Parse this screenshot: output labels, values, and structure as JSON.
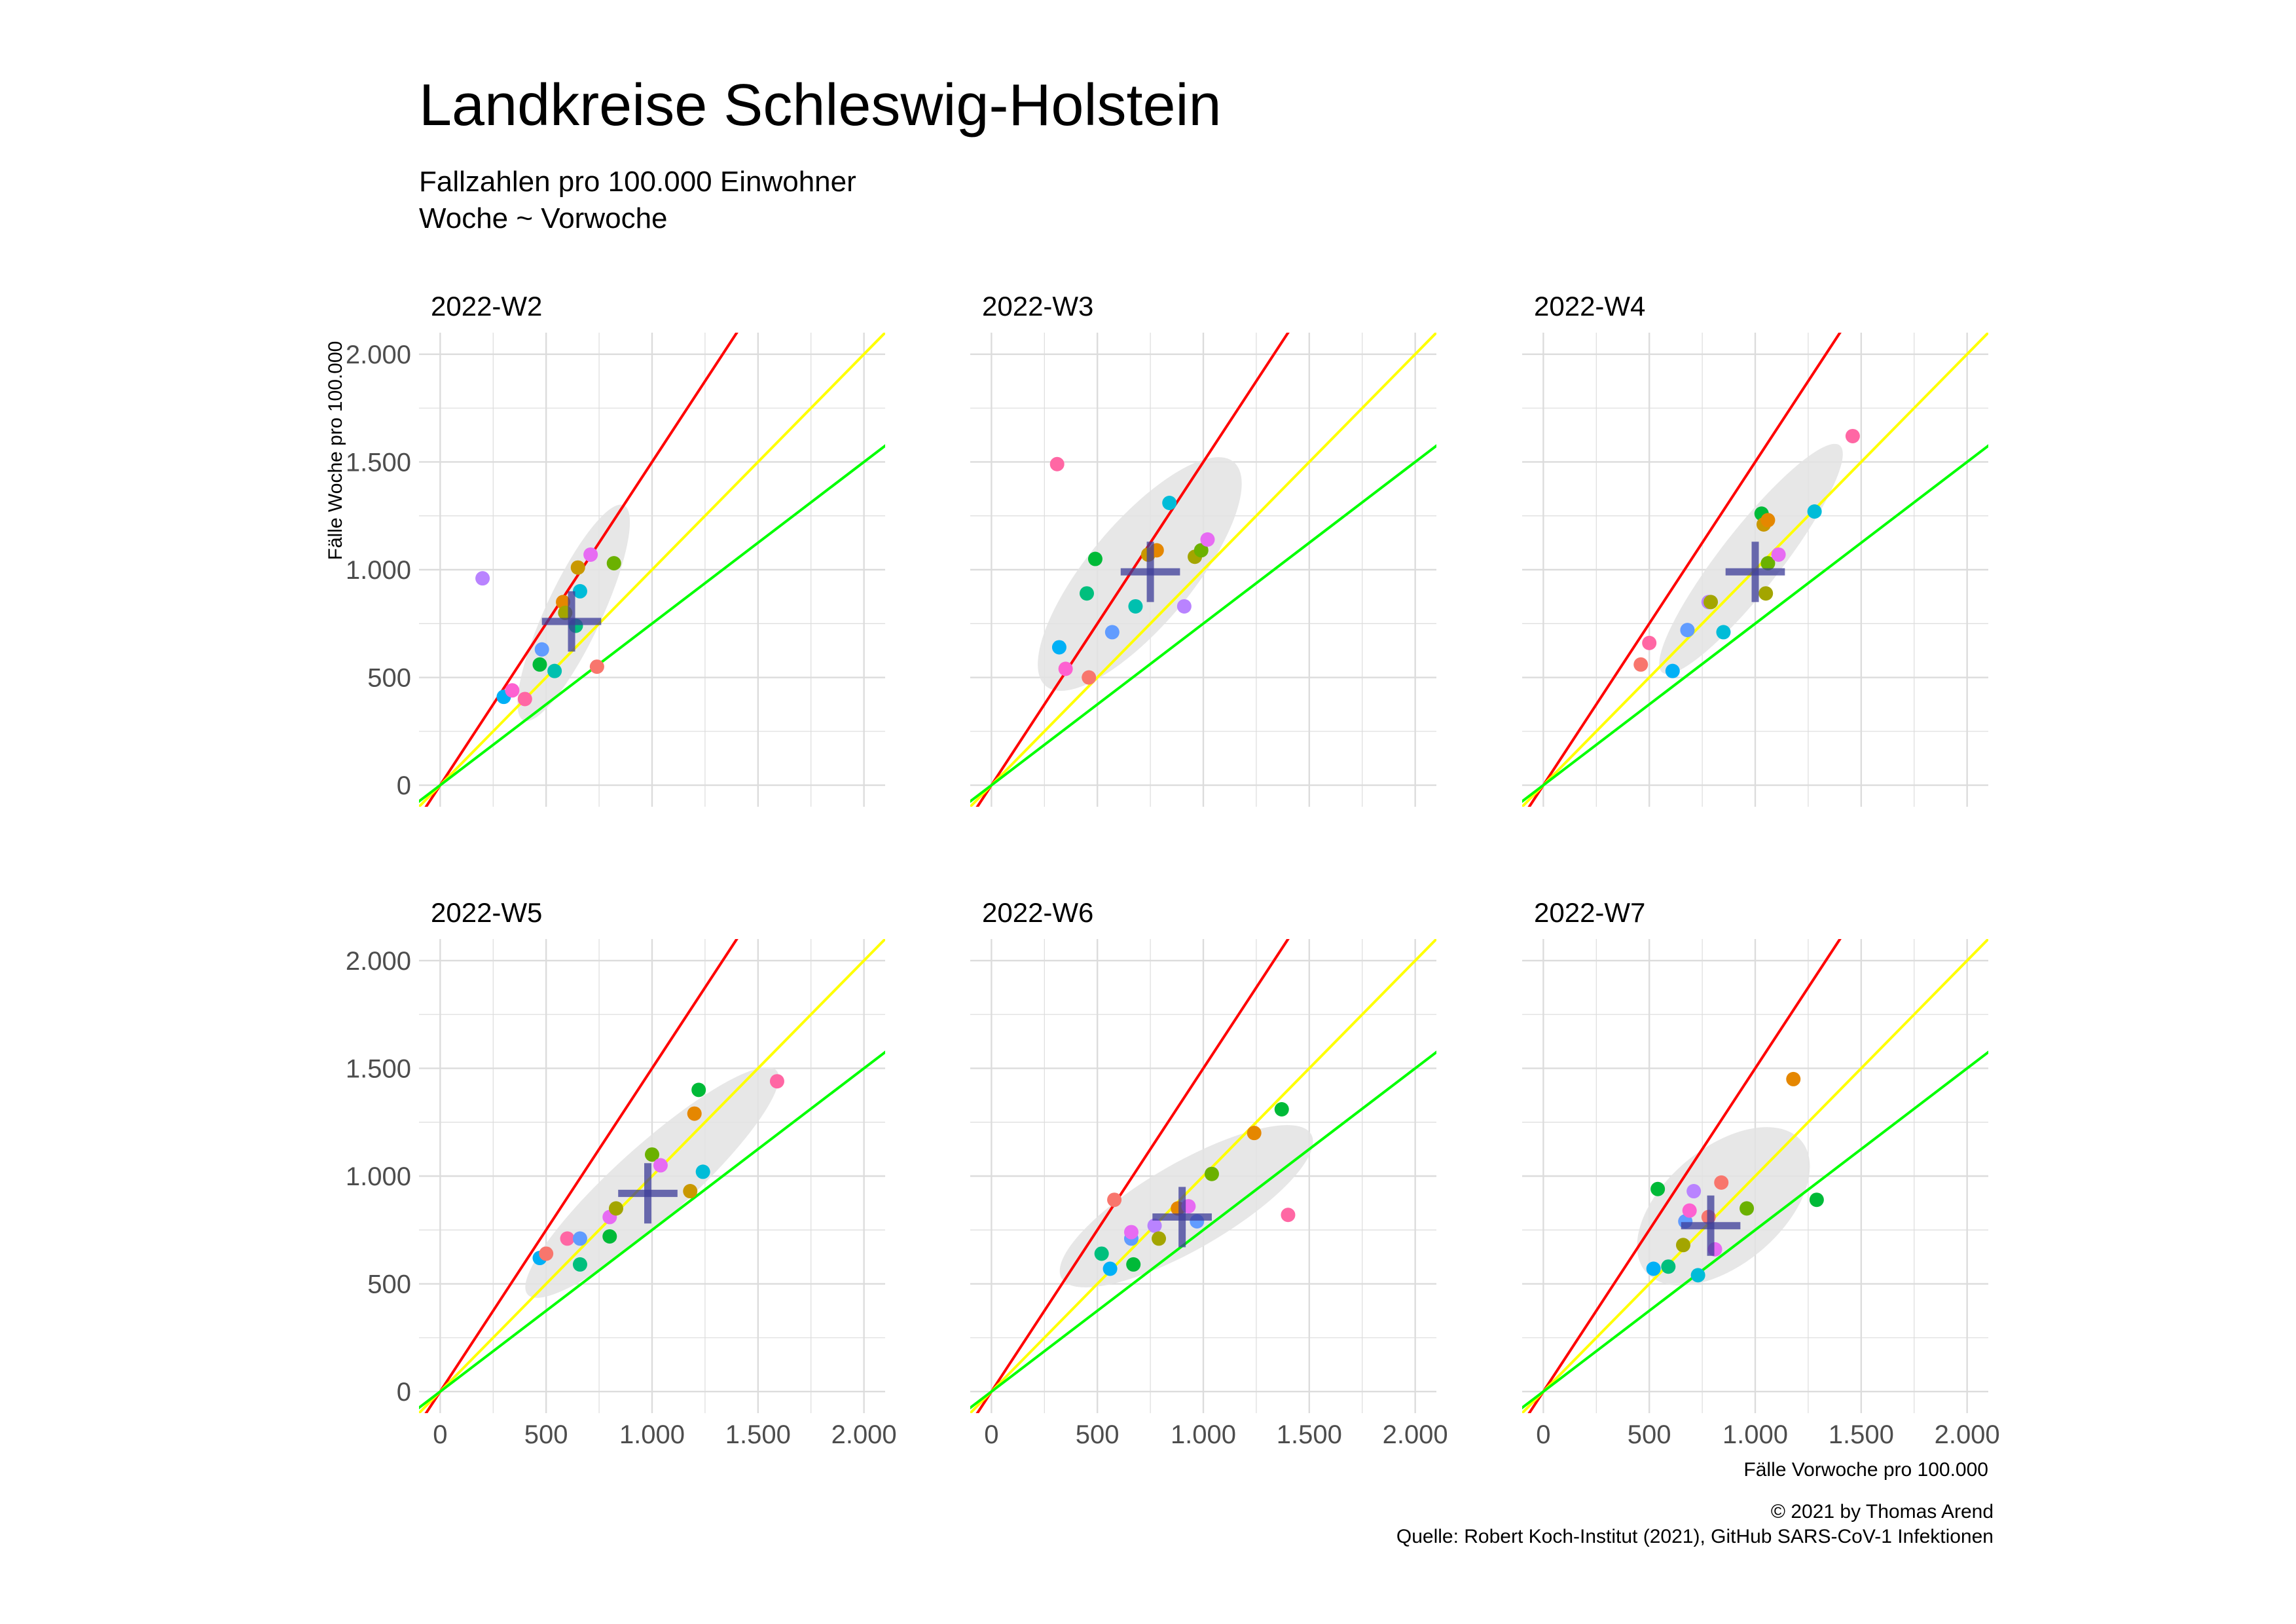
{
  "title": "Landkreise Schleswig-Holstein",
  "subtitle_lines": [
    "Fallzahlen pro 100.000 Einwohner",
    "Woche ~ Vorwoche"
  ],
  "caption_lines": [
    "© 2021 by Thomas Arend",
    "Quelle: Robert Koch-Institut (2021), GitHub SARS-CoV-1 Infektionen"
  ],
  "colors": {
    "red_line": "#ff0000",
    "yellow_line": "#ffff00",
    "green_line": "#00ff00",
    "ellipse": "#e3e3e3",
    "cross": "#3d3d99",
    "grid": "#dcdcdc"
  },
  "chart_data": {
    "type": "scatter",
    "xlabel": "Fälle Vorwoche pro 100.000",
    "ylabel": "Fälle Woche pro 100.000",
    "xlim": [
      -100,
      2100
    ],
    "ylim": [
      -100,
      2100
    ],
    "x_ticks": [
      0,
      500,
      1000,
      1500,
      2000
    ],
    "y_ticks": [
      0,
      500,
      1000,
      1500,
      2000
    ],
    "x_tick_labels": [
      "0",
      "500",
      "1.000",
      "1.500",
      "2.000"
    ],
    "y_tick_labels": [
      "0",
      "500",
      "1.000",
      "1.500",
      "2.000"
    ],
    "reference_lines": [
      {
        "slope": 1.5,
        "color": "#ff0000"
      },
      {
        "slope": 1.0,
        "color": "#ffff00"
      },
      {
        "slope": 0.75,
        "color": "#00ff00"
      }
    ],
    "grid": true,
    "legend": "none",
    "point_colors": [
      "#F8766D",
      "#E58700",
      "#C99800",
      "#A3A500",
      "#6BB100",
      "#00BA38",
      "#00BF7D",
      "#00C0AF",
      "#00BCD8",
      "#00B0F6",
      "#619CFF",
      "#B983FF",
      "#E76BF3",
      "#FD61D1",
      "#FF67A4"
    ],
    "panels": [
      {
        "label": "2022-W2",
        "mean": [
          620,
          760
        ],
        "ellipse": {
          "cx": 630,
          "cy": 800,
          "rx": 560,
          "ry": 130,
          "angle_deg": 65
        },
        "points": [
          {
            "x": 200,
            "y": 960,
            "c": "#B983FF"
          },
          {
            "x": 300,
            "y": 410,
            "c": "#00B0F6"
          },
          {
            "x": 340,
            "y": 440,
            "c": "#FD61D1"
          },
          {
            "x": 400,
            "y": 400,
            "c": "#FF67A4"
          },
          {
            "x": 470,
            "y": 560,
            "c": "#00BA38"
          },
          {
            "x": 480,
            "y": 630,
            "c": "#619CFF"
          },
          {
            "x": 540,
            "y": 530,
            "c": "#00C0AF"
          },
          {
            "x": 580,
            "y": 850,
            "c": "#E58700"
          },
          {
            "x": 590,
            "y": 800,
            "c": "#A3A500"
          },
          {
            "x": 640,
            "y": 740,
            "c": "#00BF7D"
          },
          {
            "x": 650,
            "y": 1010,
            "c": "#C99800"
          },
          {
            "x": 660,
            "y": 900,
            "c": "#00BCD8"
          },
          {
            "x": 710,
            "y": 1070,
            "c": "#E76BF3"
          },
          {
            "x": 740,
            "y": 550,
            "c": "#F8766D"
          },
          {
            "x": 820,
            "y": 1030,
            "c": "#6BB100"
          }
        ]
      },
      {
        "label": "2022-W3",
        "mean": [
          750,
          990
        ],
        "ellipse": {
          "cx": 700,
          "cy": 980,
          "rx": 690,
          "ry": 240,
          "angle_deg": 50
        },
        "points": [
          {
            "x": 310,
            "y": 1490,
            "c": "#FF67A4"
          },
          {
            "x": 320,
            "y": 640,
            "c": "#00B0F6"
          },
          {
            "x": 350,
            "y": 540,
            "c": "#FD61D1"
          },
          {
            "x": 450,
            "y": 890,
            "c": "#00BF7D"
          },
          {
            "x": 460,
            "y": 500,
            "c": "#F8766D"
          },
          {
            "x": 490,
            "y": 1050,
            "c": "#00BA38"
          },
          {
            "x": 570,
            "y": 710,
            "c": "#619CFF"
          },
          {
            "x": 680,
            "y": 830,
            "c": "#00C0AF"
          },
          {
            "x": 740,
            "y": 1070,
            "c": "#C99800"
          },
          {
            "x": 780,
            "y": 1090,
            "c": "#E58700"
          },
          {
            "x": 840,
            "y": 1310,
            "c": "#00BCD8"
          },
          {
            "x": 910,
            "y": 830,
            "c": "#B983FF"
          },
          {
            "x": 960,
            "y": 1060,
            "c": "#A3A500"
          },
          {
            "x": 990,
            "y": 1090,
            "c": "#6BB100"
          },
          {
            "x": 1020,
            "y": 1140,
            "c": "#E76BF3"
          }
        ]
      },
      {
        "label": "2022-W4",
        "mean": [
          1000,
          990
        ],
        "ellipse": {
          "cx": 980,
          "cy": 1050,
          "rx": 680,
          "ry": 140,
          "angle_deg": 52
        },
        "points": [
          {
            "x": 460,
            "y": 560,
            "c": "#F8766D"
          },
          {
            "x": 500,
            "y": 660,
            "c": "#FF67A4"
          },
          {
            "x": 610,
            "y": 530,
            "c": "#00B0F6"
          },
          {
            "x": 680,
            "y": 720,
            "c": "#619CFF"
          },
          {
            "x": 780,
            "y": 850,
            "c": "#B983FF"
          },
          {
            "x": 790,
            "y": 850,
            "c": "#A3A500"
          },
          {
            "x": 850,
            "y": 710,
            "c": "#00BCD8"
          },
          {
            "x": 1030,
            "y": 1260,
            "c": "#00BA38"
          },
          {
            "x": 1040,
            "y": 1210,
            "c": "#C99800"
          },
          {
            "x": 1060,
            "y": 1230,
            "c": "#E58700"
          },
          {
            "x": 1050,
            "y": 890,
            "c": "#A3A500"
          },
          {
            "x": 1060,
            "y": 1030,
            "c": "#6BB100"
          },
          {
            "x": 1110,
            "y": 1070,
            "c": "#E76BF3"
          },
          {
            "x": 1280,
            "y": 1270,
            "c": "#00BCD8"
          },
          {
            "x": 1460,
            "y": 1620,
            "c": "#FF67A4"
          }
        ]
      },
      {
        "label": "2022-W5",
        "mean": [
          980,
          920
        ],
        "ellipse": {
          "cx": 1000,
          "cy": 970,
          "rx": 790,
          "ry": 170,
          "angle_deg": 42
        },
        "points": [
          {
            "x": 470,
            "y": 620,
            "c": "#00B0F6"
          },
          {
            "x": 500,
            "y": 640,
            "c": "#F8766D"
          },
          {
            "x": 600,
            "y": 710,
            "c": "#FF67A4"
          },
          {
            "x": 660,
            "y": 710,
            "c": "#619CFF"
          },
          {
            "x": 660,
            "y": 590,
            "c": "#00BF7D"
          },
          {
            "x": 800,
            "y": 720,
            "c": "#00BA38"
          },
          {
            "x": 800,
            "y": 810,
            "c": "#E76BF3"
          },
          {
            "x": 830,
            "y": 850,
            "c": "#A3A500"
          },
          {
            "x": 1000,
            "y": 1100,
            "c": "#6BB100"
          },
          {
            "x": 1040,
            "y": 1050,
            "c": "#E76BF3"
          },
          {
            "x": 1180,
            "y": 930,
            "c": "#C99800"
          },
          {
            "x": 1200,
            "y": 1290,
            "c": "#E58700"
          },
          {
            "x": 1220,
            "y": 1400,
            "c": "#00BA38"
          },
          {
            "x": 1240,
            "y": 1020,
            "c": "#00BCD8"
          },
          {
            "x": 1590,
            "y": 1440,
            "c": "#FF67A4"
          }
        ]
      },
      {
        "label": "2022-W6",
        "mean": [
          900,
          810
        ],
        "ellipse": {
          "cx": 920,
          "cy": 860,
          "rx": 680,
          "ry": 200,
          "angle_deg": 30
        },
        "points": [
          {
            "x": 520,
            "y": 640,
            "c": "#00BF7D"
          },
          {
            "x": 560,
            "y": 570,
            "c": "#00B0F6"
          },
          {
            "x": 580,
            "y": 890,
            "c": "#F8766D"
          },
          {
            "x": 660,
            "y": 710,
            "c": "#619CFF"
          },
          {
            "x": 660,
            "y": 740,
            "c": "#E76BF3"
          },
          {
            "x": 670,
            "y": 590,
            "c": "#00BA38"
          },
          {
            "x": 770,
            "y": 770,
            "c": "#B983FF"
          },
          {
            "x": 790,
            "y": 710,
            "c": "#A3A500"
          },
          {
            "x": 880,
            "y": 850,
            "c": "#E58700"
          },
          {
            "x": 930,
            "y": 860,
            "c": "#E76BF3"
          },
          {
            "x": 970,
            "y": 790,
            "c": "#619CFF"
          },
          {
            "x": 1040,
            "y": 1010,
            "c": "#6BB100"
          },
          {
            "x": 1240,
            "y": 1200,
            "c": "#E58700"
          },
          {
            "x": 1370,
            "y": 1310,
            "c": "#00BA38"
          },
          {
            "x": 1400,
            "y": 820,
            "c": "#FF67A4"
          }
        ]
      },
      {
        "label": "2022-W7",
        "mean": [
          790,
          770
        ],
        "ellipse": {
          "cx": 850,
          "cy": 860,
          "rx": 480,
          "ry": 270,
          "angle_deg": 40
        },
        "points": [
          {
            "x": 520,
            "y": 570,
            "c": "#00B0F6"
          },
          {
            "x": 540,
            "y": 940,
            "c": "#00BA38"
          },
          {
            "x": 590,
            "y": 580,
            "c": "#00BF7D"
          },
          {
            "x": 660,
            "y": 680,
            "c": "#A3A500"
          },
          {
            "x": 670,
            "y": 790,
            "c": "#619CFF"
          },
          {
            "x": 690,
            "y": 840,
            "c": "#FD61D1"
          },
          {
            "x": 710,
            "y": 930,
            "c": "#B983FF"
          },
          {
            "x": 730,
            "y": 540,
            "c": "#00BCD8"
          },
          {
            "x": 780,
            "y": 810,
            "c": "#F8766D"
          },
          {
            "x": 810,
            "y": 660,
            "c": "#E76BF3"
          },
          {
            "x": 840,
            "y": 970,
            "c": "#F8766D"
          },
          {
            "x": 960,
            "y": 850,
            "c": "#6BB100"
          },
          {
            "x": 1180,
            "y": 1450,
            "c": "#E58700"
          },
          {
            "x": 1290,
            "y": 890,
            "c": "#00BA38"
          }
        ]
      }
    ]
  }
}
